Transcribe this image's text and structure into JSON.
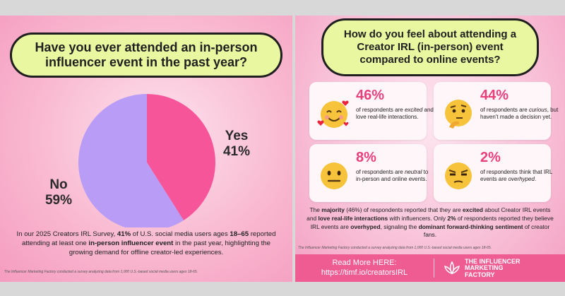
{
  "left": {
    "question": "Have you ever attended an in-person influencer event in the past year?",
    "description": {
      "p1": "In our 2025 Creators IRL Survey, ",
      "b1": "41%",
      "p2": " of U.S. social media users ages ",
      "b2": "18–65",
      "p3": " reported attending at least one ",
      "b3": "in-person influencer event",
      "p4": " in the past year, highlighting the growing demand for offline creator-led experiences."
    },
    "footnote": "The Influencer Marketing Factory conducted a survey analyzing data from 1,000 U.S.-based social media users ages 18-65."
  },
  "chart_data": {
    "type": "pie",
    "slices": [
      {
        "label": "Yes",
        "value": 41,
        "display": "41%",
        "color": "#f7559a"
      },
      {
        "label": "No",
        "value": 59,
        "display": "59%",
        "color": "#b89cf6"
      }
    ]
  },
  "right": {
    "question": "How do you feel about attending a Creator IRL (in-person) event compared to online events?",
    "stats": [
      {
        "pct": "46%",
        "a": "of respondents are ",
        "em": "excited",
        "b": " and love real-life interactions.",
        "emoji": "smiling-face-with-hearts-icon"
      },
      {
        "pct": "44%",
        "a": "of respondents are ",
        "em": "curious",
        "b": ", but haven't made a decision yet.",
        "emoji": "thinking-face-icon"
      },
      {
        "pct": "8%",
        "a": "of respondents are ",
        "em": "neutral",
        "b": " to in-person and online events.",
        "emoji": "neutral-face-icon"
      },
      {
        "pct": "2%",
        "a": "of respondents think that IRL events are ",
        "em": "overhyped",
        "b": ".",
        "emoji": "unamused-face-icon"
      }
    ],
    "description": {
      "p1": "The ",
      "b1": "majority",
      "p2": " (46%) of respondents reported that they are ",
      "b2": "excited",
      "p3": " about Creator IRL events and ",
      "b3": "love real-life interactions",
      "p4": " with influencers. Only ",
      "b4": "2%",
      "p5": " of respondents reported they believe IRL events are ",
      "b5": "overhyped",
      "p6": ", signaling the ",
      "b6": "dominant forward-thinking sentiment",
      "p7": " of creator fans."
    },
    "footnote": "The Influencer Marketing Factory conducted a survey analyzing data from 1,000 U.S.-based social media users ages 18-65.",
    "cta_label": "Read More HERE:",
    "cta_url": "https://timf.io/creatorsIRL",
    "brand_line1": "THE INFLUENCER",
    "brand_line2": "MARKETING",
    "brand_line3": "FACTORY"
  }
}
